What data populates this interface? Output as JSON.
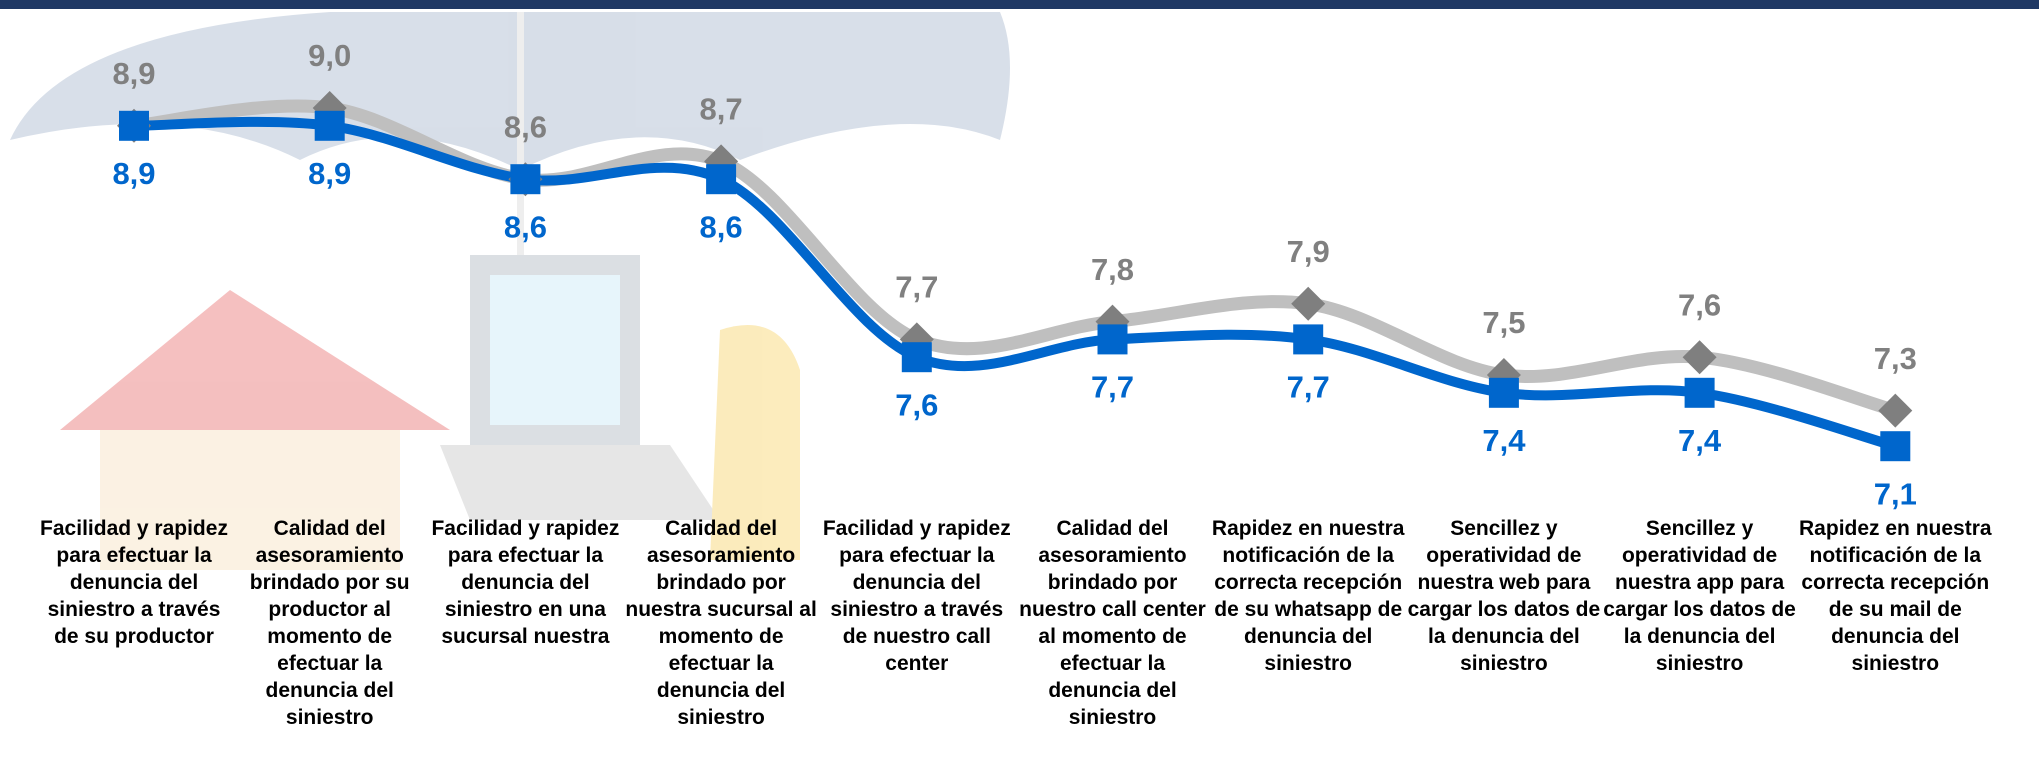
{
  "chart_data": {
    "type": "line",
    "categories": [
      "Facilidad y rapidez para efectuar la denuncia del siniestro a través de su productor",
      "Calidad del asesoramiento brindado por su productor al momento de efectuar la denuncia del siniestro",
      "Facilidad y rapidez para efectuar la denuncia del siniestro en una sucursal nuestra",
      "Calidad del asesoramiento brindado por nuestra sucursal al momento de efectuar la denuncia del siniestro",
      "Facilidad y rapidez para efectuar la denuncia del siniestro a través de nuestro call center",
      "Calidad del asesoramiento brindado por nuestro call center al momento de efectuar la denuncia del siniestro",
      "Rapidez en nuestra notificación de la correcta recepción de su whatsapp de denuncia del siniestro",
      "Sencillez y operatividad de nuestra web para cargar los datos de la denuncia del siniestro",
      "Sencillez y operatividad de nuestra app para cargar los datos de la denuncia del siniestro",
      "Rapidez en nuestra notificación de la correcta recepción de su mail de denuncia del siniestro"
    ],
    "series": [
      {
        "color": "#bfbfbf",
        "marker_color": "#7f7f7f",
        "label_color": "#808080",
        "marker": "diamond",
        "label_position": "above",
        "values": [
          8.9,
          9.0,
          8.6,
          8.7,
          7.7,
          7.8,
          7.9,
          7.5,
          7.6,
          7.3
        ],
        "value_labels": [
          "8,9",
          "9,0",
          "8,6",
          "8,7",
          "7,7",
          "7,8",
          "7,9",
          "7,5",
          "7,6",
          "7,3"
        ]
      },
      {
        "color": "#0066cc",
        "marker_color": "#0066cc",
        "label_color": "#0066cc",
        "marker": "square",
        "label_position": "below",
        "values": [
          8.9,
          8.9,
          8.6,
          8.6,
          7.6,
          7.7,
          7.7,
          7.4,
          7.4,
          7.1
        ],
        "value_labels": [
          "8,9",
          "8,9",
          "8,6",
          "8,6",
          "7,6",
          "7,7",
          "7,7",
          "7,4",
          "7,4",
          "7,1"
        ]
      }
    ],
    "ylim": [
      6.5,
      9.5
    ],
    "smooth": true
  }
}
